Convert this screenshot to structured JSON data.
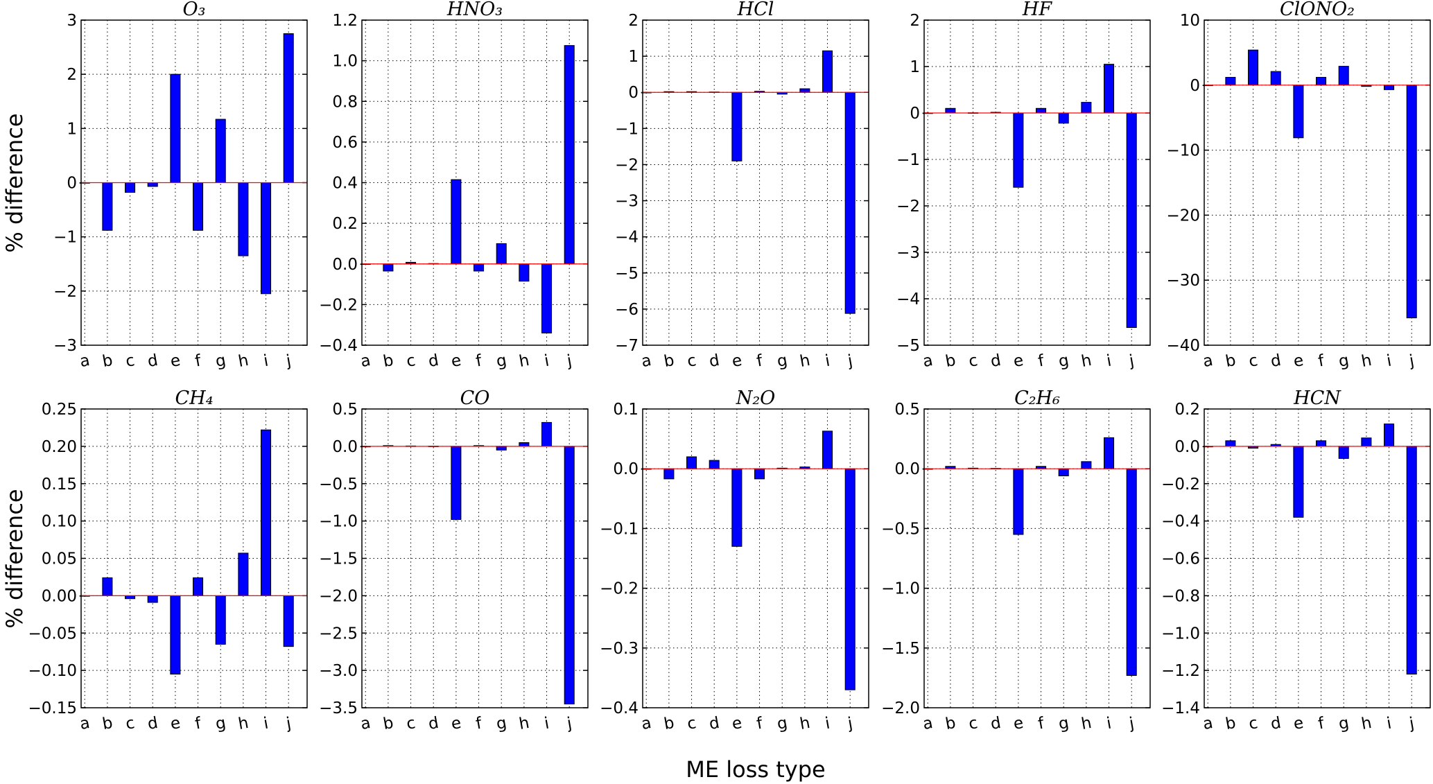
{
  "chart_data": [
    {
      "type": "bar",
      "title": "O₃",
      "categories": [
        "a",
        "b",
        "c",
        "d",
        "e",
        "f",
        "g",
        "h",
        "i",
        "j"
      ],
      "values": [
        0,
        -0.88,
        -0.18,
        -0.07,
        2.0,
        -0.88,
        1.17,
        -1.35,
        -2.05,
        2.75
      ],
      "ylim": [
        -3,
        3
      ],
      "yticks": [
        "3",
        "2",
        "1",
        "0",
        "−1",
        "−2",
        "−3"
      ]
    },
    {
      "type": "bar",
      "title": "HNO₃",
      "categories": [
        "a",
        "b",
        "c",
        "d",
        "e",
        "f",
        "g",
        "h",
        "i",
        "j"
      ],
      "values": [
        0,
        -0.035,
        0.008,
        0.002,
        0.415,
        -0.035,
        0.1,
        -0.085,
        -0.34,
        1.075
      ],
      "ylim": [
        -0.4,
        1.2
      ],
      "yticks": [
        "1.2",
        "1.0",
        "0.8",
        "0.6",
        "0.4",
        "0.2",
        "0.0",
        "−0.2",
        "−0.4"
      ]
    },
    {
      "type": "bar",
      "title": "HCl",
      "categories": [
        "a",
        "b",
        "c",
        "d",
        "e",
        "f",
        "g",
        "h",
        "i",
        "j"
      ],
      "values": [
        0,
        0.02,
        0.02,
        0.01,
        -1.9,
        0.03,
        -0.05,
        0.1,
        1.15,
        -6.12
      ],
      "ylim": [
        -7,
        2
      ],
      "yticks": [
        "2",
        "1",
        "0",
        "−1",
        "−2",
        "−3",
        "−4",
        "−5",
        "−6",
        "−7"
      ]
    },
    {
      "type": "bar",
      "title": "HF",
      "categories": [
        "a",
        "b",
        "c",
        "d",
        "e",
        "f",
        "g",
        "h",
        "i",
        "j"
      ],
      "values": [
        0,
        0.1,
        0.005,
        0.015,
        -1.6,
        0.1,
        -0.22,
        0.23,
        1.05,
        -4.62
      ],
      "ylim": [
        -5,
        2
      ],
      "yticks": [
        "2",
        "1",
        "0",
        "−1",
        "−2",
        "−3",
        "−4",
        "−5"
      ]
    },
    {
      "type": "bar",
      "title": "ClONO₂",
      "categories": [
        "a",
        "b",
        "c",
        "d",
        "e",
        "f",
        "g",
        "h",
        "i",
        "j"
      ],
      "values": [
        0,
        1.2,
        5.4,
        2.1,
        -8.1,
        1.2,
        2.9,
        -0.2,
        -0.7,
        -35.8
      ],
      "ylim": [
        -40,
        10
      ],
      "yticks": [
        "10",
        "0",
        "−10",
        "−20",
        "−30",
        "−40"
      ]
    },
    {
      "type": "bar",
      "title": "CH₄",
      "categories": [
        "a",
        "b",
        "c",
        "d",
        "e",
        "f",
        "g",
        "h",
        "i",
        "j"
      ],
      "values": [
        0,
        0.024,
        -0.004,
        -0.009,
        -0.105,
        0.024,
        -0.065,
        0.057,
        0.222,
        -0.068
      ],
      "ylim": [
        -0.15,
        0.25
      ],
      "yticks": [
        "0.25",
        "0.20",
        "0.15",
        "0.10",
        "0.05",
        "0.00",
        "−0.05",
        "−0.10",
        "−0.15"
      ]
    },
    {
      "type": "bar",
      "title": "CO",
      "categories": [
        "a",
        "b",
        "c",
        "d",
        "e",
        "f",
        "g",
        "h",
        "i",
        "j"
      ],
      "values": [
        0,
        0.01,
        0.005,
        0.003,
        -0.98,
        0.01,
        -0.05,
        0.05,
        0.32,
        -3.45
      ],
      "ylim": [
        -3.5,
        0.5
      ],
      "yticks": [
        "0.5",
        "0.0",
        "−0.5",
        "−1.0",
        "−1.5",
        "−2.0",
        "−2.5",
        "−3.0",
        "−3.5"
      ]
    },
    {
      "type": "bar",
      "title": "N₂O",
      "categories": [
        "a",
        "b",
        "c",
        "d",
        "e",
        "f",
        "g",
        "h",
        "i",
        "j"
      ],
      "values": [
        0,
        -0.017,
        0.02,
        0.014,
        -0.13,
        -0.017,
        0.001,
        0.003,
        0.063,
        -0.37
      ],
      "ylim": [
        -0.4,
        0.1
      ],
      "yticks": [
        "0.1",
        "0.0",
        "−0.1",
        "−0.2",
        "−0.3",
        "−0.4"
      ]
    },
    {
      "type": "bar",
      "title": "C₂H₆",
      "categories": [
        "a",
        "b",
        "c",
        "d",
        "e",
        "f",
        "g",
        "h",
        "i",
        "j"
      ],
      "values": [
        0,
        0.02,
        0.005,
        0.003,
        -0.55,
        0.02,
        -0.06,
        0.06,
        0.26,
        -1.73
      ],
      "ylim": [
        -2,
        0.5
      ],
      "yticks": [
        "0.5",
        "0.0",
        "−0.5",
        "−1.0",
        "−1.5",
        "−2.0"
      ]
    },
    {
      "type": "bar",
      "title": "HCN",
      "categories": [
        "a",
        "b",
        "c",
        "d",
        "e",
        "f",
        "g",
        "h",
        "i",
        "j"
      ],
      "values": [
        0,
        0.03,
        -0.01,
        0.01,
        -0.38,
        0.03,
        -0.065,
        0.045,
        0.12,
        -1.22
      ],
      "ylim": [
        -1.4,
        0.2
      ],
      "yticks": [
        "0.2",
        "0.0",
        "−0.2",
        "−0.4",
        "−0.6",
        "−0.8",
        "−1.0",
        "−1.2",
        "−1.4"
      ]
    }
  ],
  "labels": {
    "ylabel": "% difference",
    "xlabel": "ME loss type"
  },
  "style": {
    "bar_color": "#0000ff",
    "zero_line_color": "#ff0000",
    "grid": true
  }
}
